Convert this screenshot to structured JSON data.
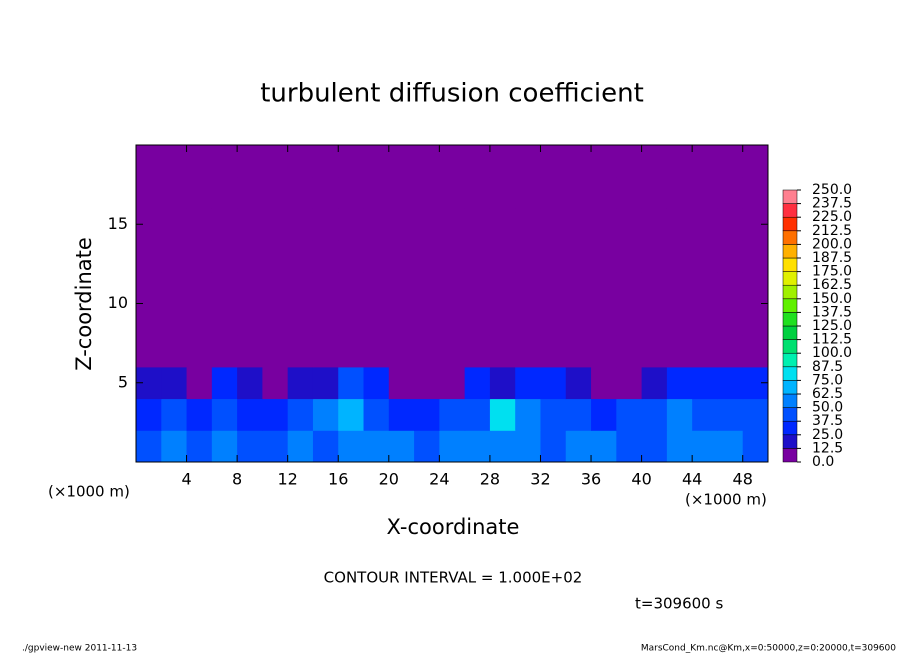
{
  "chart_data": {
    "type": "heatmap",
    "title": "turbulent diffusion coefficient",
    "x_label": "X-coordinate",
    "y_label": "Z-coordinate",
    "x_unit": "(×1000 m)",
    "y_unit": "(×1000 m)",
    "annotation": "CONTOUR INTERVAL = 1.000E+02",
    "time_label": "t=309600 s",
    "footer_left": "./gpview-new   2011-11-13",
    "footer_right": "MarsCond_Km.nc@Km,x=0:50000,z=0:20000,t=309600",
    "xlim": [
      0,
      50
    ],
    "ylim": [
      0,
      20
    ],
    "xticks": [
      4,
      8,
      12,
      16,
      20,
      24,
      28,
      32,
      36,
      40,
      44,
      48
    ],
    "yticks": [
      5,
      10,
      15
    ],
    "cell_size": 2,
    "x": [
      1,
      3,
      5,
      7,
      9,
      11,
      13,
      15,
      17,
      19,
      21,
      23,
      25,
      27,
      29,
      31,
      33,
      35,
      37,
      39,
      41,
      43,
      45,
      47,
      49
    ],
    "y": [
      1,
      3,
      5,
      7,
      9,
      11,
      13,
      15,
      17,
      19
    ],
    "z": [
      [
        45,
        50,
        40,
        55,
        45,
        40,
        50,
        45,
        60,
        55,
        50,
        45,
        50,
        55,
        60,
        50,
        45,
        55,
        50,
        45,
        40,
        60,
        50,
        55,
        45
      ],
      [
        35,
        40,
        30,
        45,
        35,
        30,
        40,
        50,
        70,
        40,
        35,
        30,
        40,
        45,
        75,
        60,
        45,
        40,
        35,
        40,
        45,
        50,
        40,
        45,
        40
      ],
      [
        20,
        15,
        10,
        30,
        15,
        10,
        20,
        15,
        40,
        25,
        5,
        5,
        10,
        30,
        20,
        35,
        25,
        15,
        10,
        5,
        20,
        25,
        30,
        25,
        35
      ],
      [
        0,
        0,
        0,
        0,
        0,
        0,
        0,
        0,
        0,
        0,
        0,
        0,
        0,
        0,
        0,
        0,
        0,
        0,
        0,
        0,
        0,
        0,
        0,
        0,
        0
      ],
      [
        0,
        0,
        0,
        0,
        0,
        0,
        0,
        0,
        0,
        0,
        0,
        0,
        0,
        0,
        0,
        0,
        0,
        0,
        0,
        0,
        0,
        0,
        0,
        0,
        0
      ],
      [
        0,
        0,
        0,
        0,
        0,
        0,
        0,
        0,
        0,
        0,
        0,
        0,
        0,
        0,
        0,
        0,
        0,
        0,
        0,
        0,
        0,
        0,
        0,
        0,
        0
      ],
      [
        0,
        0,
        0,
        0,
        0,
        0,
        0,
        0,
        0,
        0,
        0,
        0,
        0,
        0,
        0,
        0,
        0,
        0,
        0,
        0,
        0,
        0,
        0,
        0,
        0
      ],
      [
        0,
        0,
        0,
        0,
        0,
        0,
        0,
        0,
        0,
        0,
        0,
        0,
        0,
        0,
        0,
        0,
        0,
        0,
        0,
        0,
        0,
        0,
        0,
        0,
        0
      ],
      [
        0,
        0,
        0,
        0,
        0,
        0,
        0,
        0,
        0,
        0,
        0,
        0,
        0,
        0,
        0,
        0,
        0,
        0,
        0,
        0,
        0,
        0,
        0,
        0,
        0
      ],
      [
        0,
        0,
        0,
        0,
        0,
        0,
        0,
        0,
        0,
        0,
        0,
        0,
        0,
        0,
        0,
        0,
        0,
        0,
        0,
        0,
        0,
        0,
        0,
        0,
        0
      ]
    ],
    "levels": [
      {
        "value": 0,
        "label": "0.0"
      },
      {
        "value": 12.5,
        "label": "12.5"
      },
      {
        "value": 25,
        "label": "25.0"
      },
      {
        "value": 37.5,
        "label": "37.5"
      },
      {
        "value": 50,
        "label": "50.0"
      },
      {
        "value": 62.5,
        "label": "62.5"
      },
      {
        "value": 75,
        "label": "75.0"
      },
      {
        "value": 87.5,
        "label": "87.5"
      },
      {
        "value": 100,
        "label": "100.0"
      },
      {
        "value": 112.5,
        "label": "112.5"
      },
      {
        "value": 125,
        "label": "125.0"
      },
      {
        "value": 137.5,
        "label": "137.5"
      },
      {
        "value": 150,
        "label": "150.0"
      },
      {
        "value": 162.5,
        "label": "162.5"
      },
      {
        "value": 175,
        "label": "175.0"
      },
      {
        "value": 187.5,
        "label": "187.5"
      },
      {
        "value": 200,
        "label": "200.0"
      },
      {
        "value": 212.5,
        "label": "212.5"
      },
      {
        "value": 225,
        "label": "225.0"
      },
      {
        "value": 237.5,
        "label": "237.5"
      },
      {
        "value": 250,
        "label": "250.0"
      }
    ],
    "colors": [
      "#7800a0",
      "#1e0fc8",
      "#0028ff",
      "#0050ff",
      "#0080ff",
      "#00b4ff",
      "#00e0f0",
      "#00f0b0",
      "#00e070",
      "#00d040",
      "#20e020",
      "#60f000",
      "#a0f000",
      "#e0f000",
      "#ffe000",
      "#ffb000",
      "#ff7000",
      "#ff3000",
      "#ff3040",
      "#ff8090"
    ]
  }
}
